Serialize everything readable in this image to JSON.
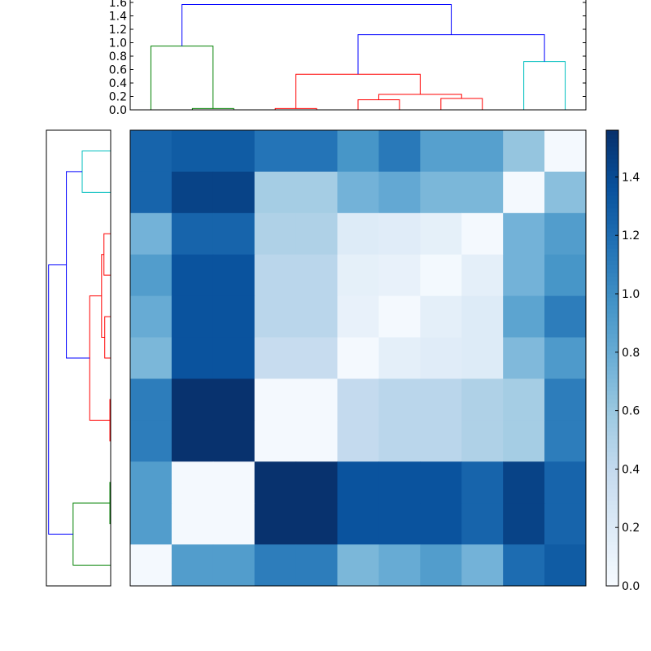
{
  "chart_data": [
    {
      "type": "heatmap",
      "colormap": "Blues",
      "vmin": 0.0,
      "vmax": 1.56,
      "colorbar_ticks": [
        "0.0",
        "0.2",
        "0.4",
        "0.6",
        "0.8",
        "1.0",
        "1.2",
        "1.4"
      ],
      "colorbar_tick_values": [
        0,
        0.2,
        0.4,
        0.6,
        0.8,
        1.0,
        1.2,
        1.4
      ],
      "values": [
        [
          1.25,
          1.3,
          1.3,
          1.15,
          1.15,
          0.95,
          1.12,
          0.88,
          0.88,
          0.62,
          0.02
        ],
        [
          1.25,
          1.45,
          1.45,
          0.55,
          0.55,
          0.75,
          0.82,
          0.72,
          0.72,
          0.02,
          0.66
        ],
        [
          0.75,
          1.25,
          1.25,
          0.5,
          0.5,
          0.2,
          0.18,
          0.14,
          0.02,
          0.75,
          0.9
        ],
        [
          0.9,
          1.35,
          1.35,
          0.45,
          0.45,
          0.14,
          0.12,
          0.03,
          0.15,
          0.75,
          0.95
        ],
        [
          0.8,
          1.35,
          1.35,
          0.45,
          0.45,
          0.12,
          0.02,
          0.15,
          0.2,
          0.85,
          1.1
        ],
        [
          0.72,
          1.35,
          1.35,
          0.38,
          0.38,
          0.02,
          0.15,
          0.18,
          0.2,
          0.7,
          0.92
        ],
        [
          1.1,
          1.55,
          1.55,
          0.02,
          0.02,
          0.4,
          0.45,
          0.45,
          0.5,
          0.55,
          1.1
        ],
        [
          1.1,
          1.55,
          1.55,
          0.02,
          0.02,
          0.4,
          0.45,
          0.45,
          0.5,
          0.55,
          1.1
        ],
        [
          0.9,
          0.02,
          0.02,
          1.55,
          1.55,
          1.35,
          1.35,
          1.35,
          1.25,
          1.45,
          1.25
        ],
        [
          0.9,
          0.02,
          0.02,
          1.55,
          1.55,
          1.35,
          1.35,
          1.35,
          1.25,
          1.45,
          1.25
        ],
        [
          0.02,
          0.9,
          0.9,
          1.1,
          1.1,
          0.72,
          0.8,
          0.9,
          0.75,
          1.2,
          1.3
        ]
      ]
    },
    {
      "type": "dendrogram",
      "orientation": "top",
      "ylim": [
        0,
        1.6
      ],
      "y_ticks": [
        "0.0",
        "0.2",
        "0.4",
        "0.6",
        "0.8",
        "1.0",
        "1.2",
        "1.4",
        "1.6"
      ],
      "y_tick_values": [
        0,
        0.2,
        0.4,
        0.6,
        0.8,
        1.0,
        1.2,
        1.4,
        1.6
      ],
      "links": [
        {
          "leaf_x": [
            0,
            0,
            1.5,
            1.5
          ],
          "heights": [
            0,
            0.95,
            0.95,
            0.02
          ],
          "color": "#008000"
        },
        {
          "leaf_x": [
            1,
            1,
            2,
            2
          ],
          "heights": [
            0,
            0.02,
            0.02,
            0
          ],
          "color": "#008000"
        },
        {
          "leaf_x": [
            3,
            3,
            4,
            4
          ],
          "heights": [
            0,
            0.02,
            0.02,
            0
          ],
          "color": "#ff0000"
        },
        {
          "leaf_x": [
            5,
            5,
            6,
            6
          ],
          "heights": [
            0,
            0.15,
            0.15,
            0
          ],
          "color": "#ff0000"
        },
        {
          "leaf_x": [
            7,
            7,
            8,
            8
          ],
          "heights": [
            0,
            0.17,
            0.17,
            0
          ],
          "color": "#ff0000"
        },
        {
          "leaf_x": [
            5.5,
            5.5,
            7.5,
            7.5
          ],
          "heights": [
            0.15,
            0.23,
            0.23,
            0.17
          ],
          "color": "#ff0000"
        },
        {
          "leaf_x": [
            3.5,
            3.5,
            6.5,
            6.5
          ],
          "heights": [
            0.02,
            0.53,
            0.53,
            0.23
          ],
          "color": "#ff0000"
        },
        {
          "leaf_x": [
            9,
            9,
            10,
            10
          ],
          "heights": [
            0,
            0.72,
            0.72,
            0
          ],
          "color": "#00bfbf"
        },
        {
          "leaf_x": [
            5,
            5,
            9.5,
            9.5
          ],
          "heights": [
            0.53,
            1.12,
            1.12,
            0.72
          ],
          "color": "#0000ff"
        },
        {
          "leaf_x": [
            0.75,
            0.75,
            7.25,
            7.25
          ],
          "heights": [
            0.95,
            1.57,
            1.57,
            1.12
          ],
          "color": "#0000ff"
        }
      ]
    },
    {
      "type": "dendrogram",
      "orientation": "left",
      "mirror_of": "top",
      "xlim": [
        0,
        1.6
      ]
    }
  ]
}
